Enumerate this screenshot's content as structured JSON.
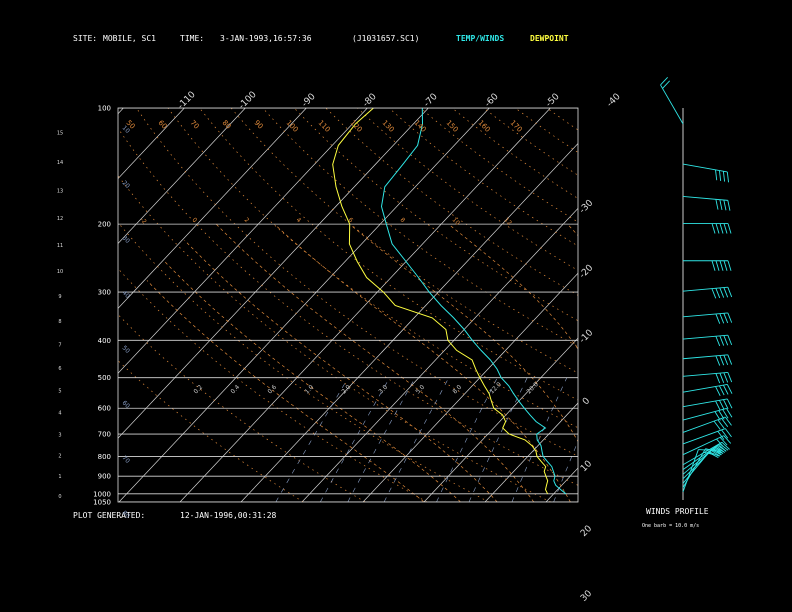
{
  "header": {
    "site_label": "SITE:",
    "site_value": "MOBILE, SC1",
    "time_label": "TIME:",
    "time_value": "3-JAN-1993,16:57:36",
    "file_value": "(J1031657.SC1)",
    "temp_winds_label": "TEMP/WINDS",
    "dewpoint_label": "DEWPOINT"
  },
  "footer": {
    "plot_generated_label": "PLOT GENERATED:",
    "plot_generated_value": "12-JAN-1996,00:31:28"
  },
  "wind_panel": {
    "title": "WINDS PROFILE",
    "note": "One barb = 10.0 m/s"
  },
  "colors": {
    "temp": "#2fe6e6",
    "dewpoint": "#ffff40",
    "isotherm": "#d8d8d8",
    "isobar": "#d8d8d8",
    "dry_adiabat": "#e08a3a",
    "moist_adiabat": "#e08a3a",
    "mixing_ratio": "#8aa0c8",
    "theta_label": "#e08a3a",
    "pressure_label": "#ffffff"
  },
  "chart_data": {
    "type": "line",
    "diagram": "skew-T log-P",
    "y_scale": "log-pressure",
    "pressure_levels": [
      100,
      200,
      300,
      400,
      500,
      600,
      700,
      800,
      900,
      1000,
      1050
    ],
    "height_ticks_km": [
      "0",
      "1",
      "2",
      "3",
      "4",
      "5",
      "6",
      "7",
      "8",
      "9",
      "10",
      "11",
      "12",
      "13",
      "14",
      "15"
    ],
    "isotherm_labels": [
      "-110",
      "-100",
      "-90",
      "-80",
      "-70",
      "-60",
      "-50",
      "-40",
      "-30",
      "-20",
      "-10",
      "0",
      "10",
      "20",
      "30"
    ],
    "theta_labels_top": [
      "50",
      "60",
      "70",
      "80",
      "90",
      "100",
      "110",
      "120",
      "130",
      "140",
      "150",
      "160",
      "170"
    ],
    "theta_labels_left": [
      "10",
      "20",
      "30",
      "40",
      "50",
      "60",
      "70",
      "80"
    ],
    "moist_labels": [
      "-2",
      "0",
      "2",
      "4",
      "6",
      "8",
      "10",
      "12"
    ],
    "mixing_labels": [
      "0.2",
      "0.4",
      "0.6",
      "1.0",
      "2.0",
      "3.0",
      "5.0",
      "8.0",
      "12.0",
      "20.0"
    ],
    "series": [
      {
        "name": "TEMP/WINDS",
        "points": [
          [
            1000,
            12.0
          ],
          [
            975,
            10.5
          ],
          [
            950,
            9.0
          ],
          [
            925,
            8.0
          ],
          [
            900,
            7.5
          ],
          [
            875,
            6.5
          ],
          [
            850,
            5.5
          ],
          [
            825,
            4.0
          ],
          [
            800,
            2.5
          ],
          [
            775,
            1.5
          ],
          [
            750,
            0.5
          ],
          [
            725,
            -1.0
          ],
          [
            700,
            -2.0
          ],
          [
            675,
            -1.5
          ],
          [
            650,
            -4.0
          ],
          [
            625,
            -6.0
          ],
          [
            600,
            -8.0
          ],
          [
            575,
            -10.0
          ],
          [
            550,
            -12.0
          ],
          [
            525,
            -14.0
          ],
          [
            500,
            -16.5
          ],
          [
            475,
            -18.5
          ],
          [
            450,
            -21.0
          ],
          [
            425,
            -24.0
          ],
          [
            400,
            -27.0
          ],
          [
            375,
            -30.0
          ],
          [
            350,
            -33.5
          ],
          [
            325,
            -37.5
          ],
          [
            300,
            -41.5
          ],
          [
            275,
            -45.5
          ],
          [
            250,
            -50.0
          ],
          [
            225,
            -55.0
          ],
          [
            200,
            -59.0
          ],
          [
            180,
            -62.5
          ],
          [
            160,
            -65.0
          ],
          [
            140,
            -65.5
          ],
          [
            125,
            -66.0
          ],
          [
            110,
            -68.5
          ],
          [
            100,
            -71.0
          ]
        ]
      },
      {
        "name": "DEWPOINT",
        "points": [
          [
            1000,
            9.0
          ],
          [
            975,
            8.0
          ],
          [
            950,
            7.5
          ],
          [
            925,
            7.0
          ],
          [
            900,
            6.0
          ],
          [
            875,
            5.0
          ],
          [
            850,
            4.5
          ],
          [
            825,
            3.0
          ],
          [
            800,
            1.5
          ],
          [
            775,
            0.5
          ],
          [
            750,
            -1.0
          ],
          [
            725,
            -3.0
          ],
          [
            700,
            -6.5
          ],
          [
            675,
            -8.5
          ],
          [
            650,
            -9.0
          ],
          [
            625,
            -10.5
          ],
          [
            600,
            -13.0
          ],
          [
            575,
            -14.5
          ],
          [
            550,
            -16.0
          ],
          [
            525,
            -18.0
          ],
          [
            500,
            -20.0
          ],
          [
            475,
            -22.0
          ],
          [
            450,
            -24.0
          ],
          [
            425,
            -28.0
          ],
          [
            400,
            -31.0
          ],
          [
            375,
            -33.0
          ],
          [
            350,
            -37.0
          ],
          [
            325,
            -45.0
          ],
          [
            300,
            -49.0
          ],
          [
            275,
            -54.0
          ],
          [
            250,
            -58.0
          ],
          [
            225,
            -62.0
          ],
          [
            200,
            -65.0
          ],
          [
            180,
            -69.0
          ],
          [
            160,
            -73.0
          ],
          [
            140,
            -77.0
          ],
          [
            125,
            -79.0
          ],
          [
            110,
            -79.5
          ],
          [
            100,
            -79.0
          ]
        ]
      }
    ],
    "winds": [
      {
        "p": 1000,
        "dir": 200,
        "spd": 10
      },
      {
        "p": 975,
        "dir": 210,
        "spd": 15
      },
      {
        "p": 950,
        "dir": 220,
        "spd": 20
      },
      {
        "p": 925,
        "dir": 225,
        "spd": 25
      },
      {
        "p": 900,
        "dir": 230,
        "spd": 25
      },
      {
        "p": 875,
        "dir": 235,
        "spd": 25
      },
      {
        "p": 850,
        "dir": 240,
        "spd": 30
      },
      {
        "p": 800,
        "dir": 245,
        "spd": 30
      },
      {
        "p": 750,
        "dir": 250,
        "spd": 30
      },
      {
        "p": 700,
        "dir": 250,
        "spd": 35
      },
      {
        "p": 650,
        "dir": 255,
        "spd": 35
      },
      {
        "p": 600,
        "dir": 260,
        "spd": 35
      },
      {
        "p": 550,
        "dir": 260,
        "spd": 35
      },
      {
        "p": 500,
        "dir": 265,
        "spd": 40
      },
      {
        "p": 450,
        "dir": 265,
        "spd": 40
      },
      {
        "p": 400,
        "dir": 265,
        "spd": 40
      },
      {
        "p": 350,
        "dir": 265,
        "spd": 40
      },
      {
        "p": 300,
        "dir": 265,
        "spd": 45
      },
      {
        "p": 250,
        "dir": 270,
        "spd": 45
      },
      {
        "p": 200,
        "dir": 270,
        "spd": 45
      },
      {
        "p": 170,
        "dir": 275,
        "spd": 40
      },
      {
        "p": 140,
        "dir": 280,
        "spd": 40
      },
      {
        "p": 110,
        "dir": 150,
        "spd": 15
      }
    ]
  }
}
